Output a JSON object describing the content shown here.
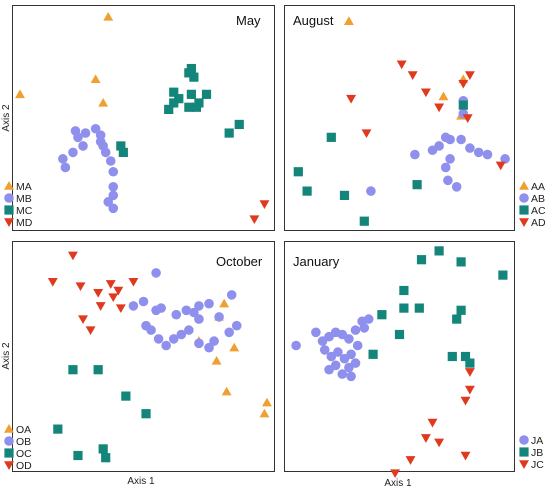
{
  "colors": {
    "orange": "#f0a030",
    "purple": "#8f8fee",
    "teal": "#14857a",
    "red": "#e03a1e"
  },
  "y_axis_label_top": "Axis 2",
  "y_axis_label_bottom": "Axis 2",
  "x_axis_label_left": "Axis 1",
  "x_axis_label_right": "Axis 1",
  "chart_data": [
    {
      "type": "scatter",
      "title": "May",
      "xlabel": "",
      "ylabel": "Axis 2",
      "xlim": [
        0,
        100
      ],
      "ylim": [
        0,
        100
      ],
      "legend_position": "left",
      "series": [
        {
          "name": "MA",
          "marker": "triangle-up",
          "color": "#f0a030",
          "x": [
            36,
            1,
            31,
            34
          ],
          "y": [
            97,
            61,
            68,
            57
          ]
        },
        {
          "name": "MB",
          "marker": "circle",
          "color": "#8f8fee",
          "x": [
            23,
            24,
            27,
            31,
            33,
            33,
            34,
            35,
            37,
            38,
            38,
            38,
            38,
            36,
            26,
            22,
            18,
            19
          ],
          "y": [
            44,
            41,
            43,
            45,
            42,
            39,
            37,
            34,
            30,
            25,
            18,
            14,
            8,
            11,
            37,
            34,
            31,
            27
          ]
        },
        {
          "name": "MC",
          "marker": "square",
          "color": "#14857a",
          "x": [
            62,
            68,
            69,
            70,
            62,
            64,
            68,
            71,
            72,
            69,
            75,
            60,
            88,
            84,
            42,
            41
          ],
          "y": [
            62,
            71,
            73,
            69,
            57,
            59,
            55,
            55,
            57,
            61,
            61,
            54,
            47,
            43,
            34,
            37
          ]
        },
        {
          "name": "MD",
          "marker": "triangle-down",
          "color": "#e03a1e",
          "x": [
            98,
            94
          ],
          "y": [
            10,
            3
          ]
        }
      ]
    },
    {
      "type": "scatter",
      "title": "August",
      "xlabel": "",
      "ylabel": "",
      "xlim": [
        0,
        100
      ],
      "ylim": [
        0,
        100
      ],
      "legend_position": "right",
      "series": [
        {
          "name": "AA",
          "marker": "triangle-up",
          "color": "#f0a030",
          "x": [
            27,
            79,
            70,
            79,
            78
          ],
          "y": [
            95,
            68,
            60,
            56,
            51
          ]
        },
        {
          "name": "AB",
          "marker": "circle",
          "color": "#8f8fee",
          "x": [
            79,
            79,
            78,
            82,
            86,
            90,
            98,
            65,
            68,
            71,
            73,
            73,
            57,
            37,
            71,
            72,
            76
          ],
          "y": [
            58,
            52,
            40,
            36,
            34,
            33,
            31,
            35,
            37,
            41,
            40,
            31,
            33,
            16,
            27,
            21,
            18
          ]
        },
        {
          "name": "AC",
          "marker": "square",
          "color": "#14857a",
          "x": [
            19,
            4,
            8,
            25,
            58,
            34,
            79
          ],
          "y": [
            41,
            25,
            16,
            14,
            19,
            2,
            56
          ]
        },
        {
          "name": "AD",
          "marker": "triangle-down",
          "color": "#e03a1e",
          "x": [
            82,
            79,
            51,
            56,
            62,
            68,
            28,
            35,
            81,
            96
          ],
          "y": [
            70,
            66,
            75,
            70,
            62,
            55,
            59,
            43,
            50,
            28
          ]
        }
      ]
    },
    {
      "type": "scatter",
      "title": "October",
      "xlabel": "Axis 1",
      "ylabel": "Axis 2",
      "xlim": [
        0,
        100
      ],
      "ylim": [
        0,
        100
      ],
      "legend_position": "left",
      "series": [
        {
          "name": "OA",
          "marker": "triangle-up",
          "color": "#f0a030",
          "x": [
            82,
            80,
            72,
            86,
            79,
            83,
            99,
            98
          ],
          "y": [
            74,
            68,
            57,
            54,
            48,
            34,
            29,
            24
          ]
        },
        {
          "name": "OB",
          "marker": "circle",
          "color": "#8f8fee",
          "x": [
            55,
            50,
            55,
            57,
            63,
            67,
            70,
            72,
            72,
            76,
            80,
            84,
            87,
            85,
            46,
            51,
            53,
            56,
            59,
            62,
            65,
            68,
            72,
            76,
            78
          ],
          "y": [
            88,
            75,
            71,
            72,
            69,
            71,
            70,
            67,
            73,
            74,
            68,
            61,
            64,
            78,
            73,
            64,
            62,
            58,
            55,
            58,
            60,
            62,
            56,
            54,
            57
          ]
        },
        {
          "name": "OC",
          "marker": "square",
          "color": "#14857a",
          "x": [
            32,
            43,
            51,
            16,
            34,
            24,
            35,
            22
          ],
          "y": [
            44,
            32,
            24,
            17,
            8,
            5,
            4,
            44
          ]
        },
        {
          "name": "OD",
          "marker": "triangle-down",
          "color": "#e03a1e",
          "x": [
            22,
            14,
            25,
            32,
            37,
            40,
            46,
            38,
            41,
            26,
            29,
            33
          ],
          "y": [
            96,
            84,
            82,
            79,
            83,
            80,
            84,
            77,
            72,
            67,
            62,
            73
          ]
        }
      ]
    },
    {
      "type": "scatter",
      "title": "January",
      "xlabel": "Axis 1",
      "ylabel": "",
      "xlim": [
        0,
        100
      ],
      "ylim": [
        0,
        100
      ],
      "legend_position": "right",
      "series": [
        {
          "name": "JA",
          "marker": "circle",
          "color": "#8f8fee",
          "x": [
            3,
            12,
            15,
            18,
            21,
            24,
            27,
            30,
            33,
            16,
            19,
            22,
            25,
            28,
            31,
            18,
            21,
            24,
            27,
            28,
            30,
            34,
            36
          ],
          "y": [
            55,
            61,
            57,
            59,
            61,
            60,
            58,
            62,
            66,
            53,
            50,
            52,
            49,
            51,
            55,
            44,
            46,
            42,
            45,
            41,
            47,
            63,
            67
          ]
        },
        {
          "name": "JB",
          "marker": "square",
          "color": "#14857a",
          "x": [
            60,
            68,
            78,
            97,
            52,
            52,
            76,
            59,
            50,
            38,
            78,
            74,
            80,
            82,
            42
          ],
          "y": [
            94,
            98,
            93,
            87,
            80,
            72,
            67,
            72,
            60,
            51,
            71,
            50,
            50,
            47,
            69
          ]
        },
        {
          "name": "JC",
          "marker": "triangle-down",
          "color": "#e03a1e",
          "x": [
            82,
            82,
            80,
            65,
            62,
            68,
            80,
            55,
            48
          ],
          "y": [
            43,
            35,
            30,
            20,
            13,
            11,
            5,
            3,
            -3
          ]
        }
      ]
    }
  ]
}
